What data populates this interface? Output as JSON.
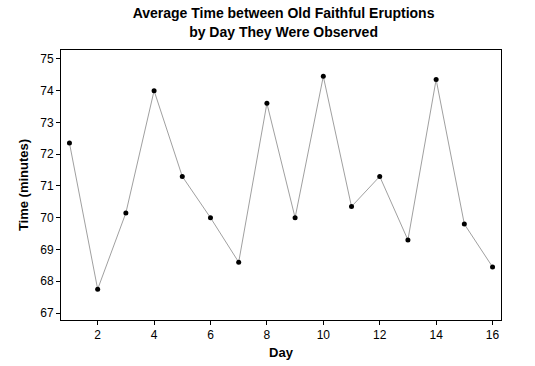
{
  "chart_data": {
    "type": "line",
    "title": "Average Time between Old Faithful Eruptions\nby Day They Were Observed",
    "x_label": "Day",
    "y_label": "Time (minutes)",
    "x": [
      1,
      2,
      3,
      4,
      5,
      6,
      7,
      8,
      9,
      10,
      11,
      12,
      13,
      14,
      15,
      16
    ],
    "values": [
      72.35,
      67.75,
      70.15,
      74.0,
      71.3,
      70.0,
      68.6,
      73.6,
      70.0,
      74.45,
      70.35,
      71.3,
      69.3,
      74.35,
      69.8,
      68.45
    ],
    "color": "#a0a0a0",
    "marker": "circle",
    "line_style": "solid",
    "xlim": [
      0.7,
      16.3
    ],
    "xticks": [
      2,
      4,
      6,
      8,
      10,
      12,
      14,
      16
    ],
    "ylim": [
      66.78,
      75.28
    ],
    "yticks": [
      67,
      68,
      69,
      70,
      71,
      72,
      73,
      74,
      75
    ],
    "grid": false
  }
}
